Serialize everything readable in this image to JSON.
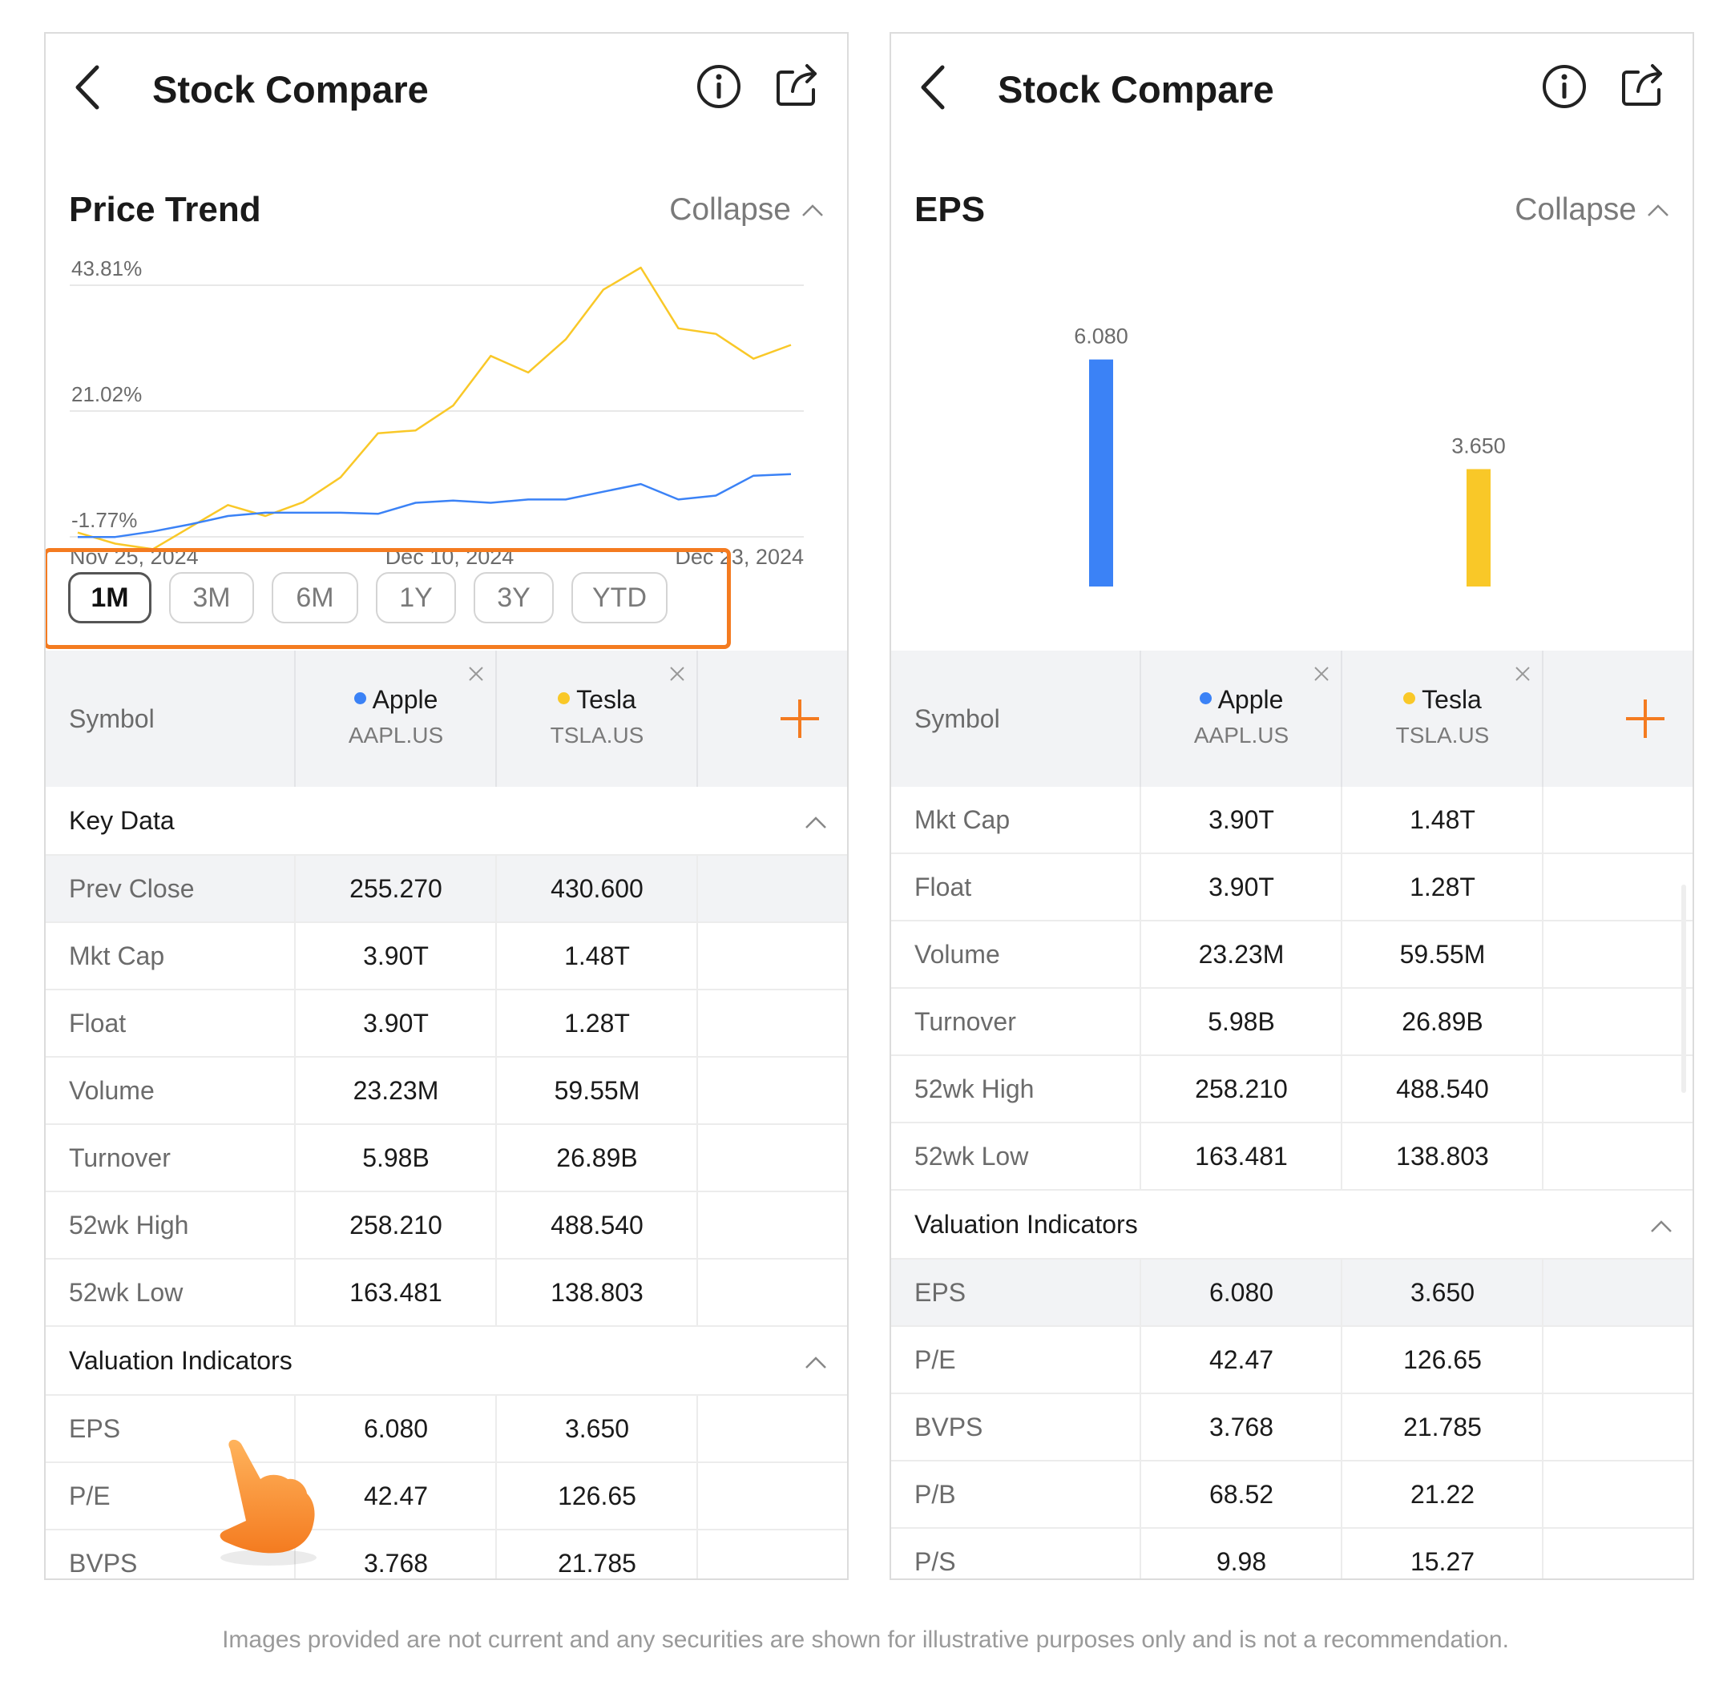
{
  "left": {
    "title": "Stock Compare",
    "section_title": "Price Trend",
    "collapse_label": "Collapse",
    "chart_data": {
      "type": "line",
      "x_labels": [
        "Nov 25, 2024",
        "Dec 10, 2024",
        "Dec 23, 2024"
      ],
      "y_tick_labels": [
        "43.81%",
        "21.02%",
        "-1.77%"
      ],
      "y_ticks": [
        43.81,
        21.02,
        -1.77
      ],
      "series": [
        {
          "name": "Apple",
          "color": "#3b82f6",
          "values": [
            -1.8,
            -1.8,
            -0.8,
            0.5,
            2.0,
            2.6,
            2.6,
            2.6,
            2.4,
            4.4,
            4.8,
            4.4,
            5.0,
            5.0,
            6.4,
            7.8,
            5.0,
            5.7,
            9.3,
            9.6
          ]
        },
        {
          "name": "Tesla",
          "color": "#f9c828",
          "values": [
            -1.0,
            -3.0,
            -4.0,
            0.0,
            4.0,
            2.0,
            4.5,
            9.0,
            17.0,
            17.5,
            22.0,
            31.0,
            28.0,
            34.0,
            43.0,
            47.0,
            36.0,
            35.0,
            30.5,
            33.0
          ]
        }
      ]
    },
    "ranges": [
      "1M",
      "3M",
      "6M",
      "1Y",
      "3Y",
      "YTD"
    ],
    "active_range": "1M",
    "symbol_label": "Symbol",
    "stocks": [
      {
        "name": "Apple",
        "code": "AAPL.US",
        "color": "#3b82f6"
      },
      {
        "name": "Tesla",
        "code": "TSLA.US",
        "color": "#f9c828"
      }
    ],
    "key_data_title": "Key Data",
    "key_rows": [
      {
        "label": "Prev Close",
        "a": "255.270",
        "b": "430.600",
        "hl": true
      },
      {
        "label": "Mkt Cap",
        "a": "3.90T",
        "b": "1.48T"
      },
      {
        "label": "Float",
        "a": "3.90T",
        "b": "1.28T"
      },
      {
        "label": "Volume",
        "a": "23.23M",
        "b": "59.55M"
      },
      {
        "label": "Turnover",
        "a": "5.98B",
        "b": "26.89B"
      },
      {
        "label": "52wk High",
        "a": "258.210",
        "b": "488.540"
      },
      {
        "label": "52wk Low",
        "a": "163.481",
        "b": "138.803"
      }
    ],
    "valuation_title": "Valuation Indicators",
    "valuation_rows": [
      {
        "label": "EPS",
        "a": "6.080",
        "b": "3.650"
      },
      {
        "label": "P/E",
        "a": "42.47",
        "b": "126.65"
      },
      {
        "label": "BVPS",
        "a": "3.768",
        "b": "21.785"
      }
    ]
  },
  "right": {
    "title": "Stock Compare",
    "section_title": "EPS",
    "collapse_label": "Collapse",
    "chart_data": {
      "type": "bar",
      "categories": [
        "Apple",
        "Tesla"
      ],
      "values": [
        6.08,
        3.65
      ],
      "value_labels": [
        "6.080",
        "3.650"
      ],
      "colors": [
        "#3b82f6",
        "#f9c828"
      ]
    },
    "symbol_label": "Symbol",
    "stocks": [
      {
        "name": "Apple",
        "code": "AAPL.US",
        "color": "#3b82f6"
      },
      {
        "name": "Tesla",
        "code": "TSLA.US",
        "color": "#f9c828"
      }
    ],
    "key_rows": [
      {
        "label": "Mkt Cap",
        "a": "3.90T",
        "b": "1.48T"
      },
      {
        "label": "Float",
        "a": "3.90T",
        "b": "1.28T"
      },
      {
        "label": "Volume",
        "a": "23.23M",
        "b": "59.55M"
      },
      {
        "label": "Turnover",
        "a": "5.98B",
        "b": "26.89B"
      },
      {
        "label": "52wk High",
        "a": "258.210",
        "b": "488.540"
      },
      {
        "label": "52wk Low",
        "a": "163.481",
        "b": "138.803"
      }
    ],
    "valuation_title": "Valuation Indicators",
    "valuation_rows": [
      {
        "label": "EPS",
        "a": "6.080",
        "b": "3.650",
        "hl": true
      },
      {
        "label": "P/E",
        "a": "42.47",
        "b": "126.65"
      },
      {
        "label": "BVPS",
        "a": "3.768",
        "b": "21.785"
      },
      {
        "label": "P/B",
        "a": "68.52",
        "b": "21.22"
      },
      {
        "label": "P/S",
        "a": "9.98",
        "b": "15.27"
      }
    ]
  },
  "accent_color": "#f47b20",
  "disclaimer": "Images provided are not current and any securities are shown for illustrative purposes only and is not a recommendation."
}
